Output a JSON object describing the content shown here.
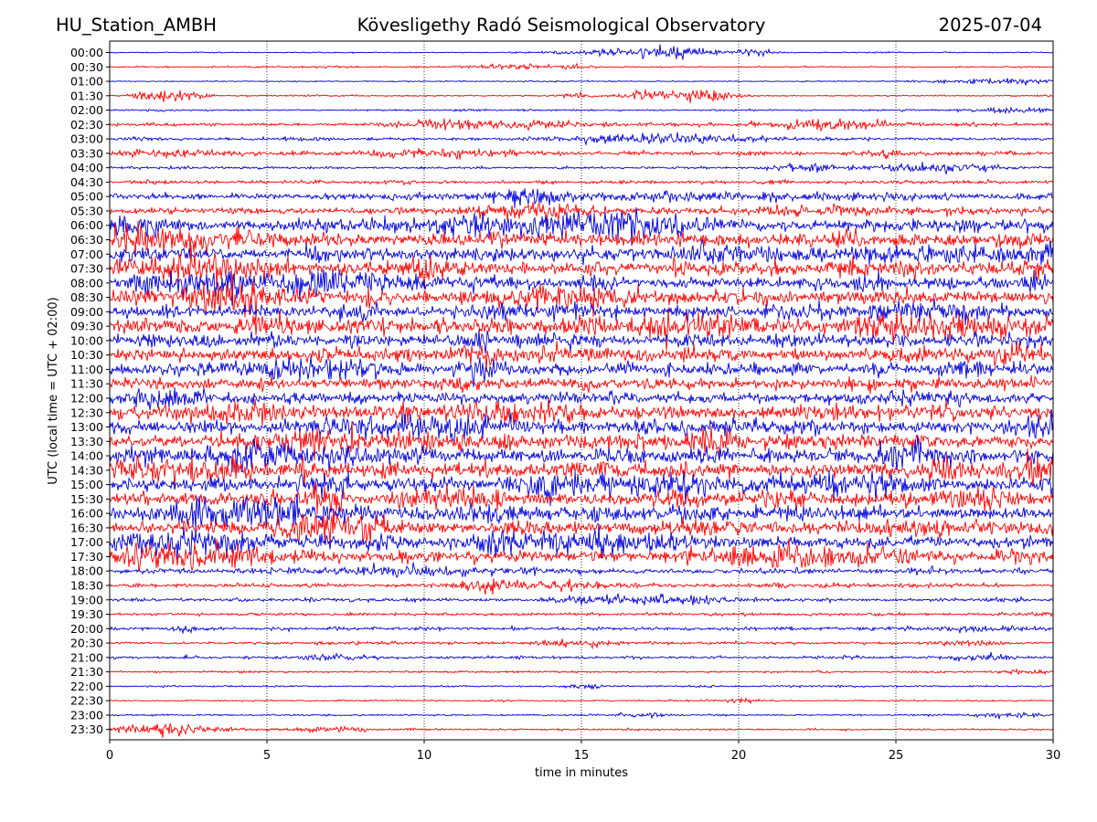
{
  "header": {
    "station": "HU_Station_AMBH",
    "observatory": "Kövesligethy Radó Seismological Observatory",
    "date": "2025-07-04"
  },
  "chart_data": {
    "type": "line",
    "title": "Kövesligethy Radó Seismological Observatory",
    "xlabel": "time in minutes",
    "ylabel": "UTC (local time = UTC + 02:00)",
    "xlim": [
      0,
      30
    ],
    "xticks": [
      0,
      5,
      10,
      15,
      20,
      25,
      30
    ],
    "grid": "vertical dotted",
    "colors": {
      "even_rows": "#0000dd",
      "odd_rows": "#ff0000"
    },
    "series": [
      {
        "name": "00:00",
        "noise": 0.1,
        "bursts": [
          [
            16.5,
            1.6,
            0.55
          ],
          [
            18.3,
            0.9,
            0.8
          ],
          [
            20.5,
            0.4,
            0.55
          ]
        ]
      },
      {
        "name": "00:30",
        "noise": 0.12,
        "bursts": [
          [
            12.8,
            0.8,
            0.45
          ],
          [
            14.8,
            0.4,
            0.35
          ]
        ]
      },
      {
        "name": "01:00",
        "noise": 0.1,
        "bursts": [
          [
            28.5,
            1.5,
            0.5
          ]
        ]
      },
      {
        "name": "01:30",
        "noise": 0.13,
        "bursts": [
          [
            1.5,
            0.5,
            1.25
          ],
          [
            2.5,
            0.4,
            0.55
          ],
          [
            14.8,
            0.3,
            0.55
          ],
          [
            17.2,
            0.6,
            0.85
          ],
          [
            19.0,
            0.6,
            1.5
          ]
        ]
      },
      {
        "name": "02:00",
        "noise": 0.14,
        "bursts": [
          [
            29.0,
            1.0,
            0.4
          ]
        ]
      },
      {
        "name": "02:30",
        "noise": 0.3,
        "bursts": [
          [
            11.5,
            1.5,
            0.6
          ],
          [
            14.0,
            0.8,
            0.45
          ],
          [
            22.8,
            1.0,
            0.8
          ]
        ]
      },
      {
        "name": "03:00",
        "noise": 0.25,
        "bursts": [
          [
            18.3,
            1.8,
            0.65
          ],
          [
            15.5,
            0.8,
            0.4
          ]
        ]
      },
      {
        "name": "03:30",
        "noise": 0.32,
        "bursts": [
          [
            2.0,
            1.0,
            0.55
          ],
          [
            11.0,
            1.5,
            0.55
          ],
          [
            24.8,
            0.5,
            0.5
          ]
        ]
      },
      {
        "name": "04:00",
        "noise": 0.22,
        "bursts": [
          [
            22.0,
            0.6,
            0.55
          ],
          [
            26.2,
            1.3,
            0.75
          ]
        ]
      },
      {
        "name": "04:30",
        "noise": 0.28,
        "bursts": []
      },
      {
        "name": "05:00",
        "noise": 0.55,
        "bursts": [
          [
            13.5,
            1.0,
            0.9
          ],
          [
            18.0,
            3.0,
            0.5
          ]
        ]
      },
      {
        "name": "05:30",
        "noise": 0.6,
        "bursts": [
          [
            13.5,
            1.2,
            1.3
          ],
          [
            23.0,
            1.5,
            0.6
          ]
        ]
      },
      {
        "name": "06:00",
        "noise": 0.95,
        "bursts": [
          [
            13.3,
            2.5,
            1.6
          ],
          [
            16.5,
            1.5,
            1.6
          ],
          [
            0.8,
            1.0,
            1.2
          ]
        ]
      },
      {
        "name": "06:30",
        "noise": 1.25,
        "bursts": [
          [
            0.6,
            1.0,
            1.7
          ],
          [
            3.0,
            1.5,
            1.2
          ]
        ]
      },
      {
        "name": "07:00",
        "noise": 1.15,
        "bursts": [
          [
            29.8,
            0.5,
            1.2
          ],
          [
            19.5,
            1.0,
            1.1
          ]
        ]
      },
      {
        "name": "07:30",
        "noise": 1.25,
        "bursts": [
          [
            3.0,
            1.5,
            1.7
          ],
          [
            10.0,
            0.6,
            1.3
          ]
        ]
      },
      {
        "name": "08:00",
        "noise": 1.15,
        "bursts": [
          [
            7.0,
            1.8,
            1.5
          ],
          [
            3.0,
            1.2,
            1.4
          ]
        ]
      },
      {
        "name": "08:30",
        "noise": 1.15,
        "bursts": [
          [
            4.2,
            1.3,
            1.9
          ],
          [
            15.0,
            1.5,
            1.3
          ]
        ]
      },
      {
        "name": "09:00",
        "noise": 1.05,
        "bursts": [
          [
            25.5,
            1.5,
            1.4
          ]
        ]
      },
      {
        "name": "09:30",
        "noise": 1.35,
        "bursts": [
          [
            27.0,
            2.5,
            1.6
          ],
          [
            18.5,
            1.5,
            1.2
          ]
        ]
      },
      {
        "name": "10:00",
        "noise": 1.05,
        "bursts": [
          [
            11.6,
            0.3,
            2.0
          ]
        ]
      },
      {
        "name": "10:30",
        "noise": 1.15,
        "bursts": [
          [
            11.6,
            0.5,
            1.8
          ],
          [
            28.8,
            0.8,
            1.3
          ]
        ]
      },
      {
        "name": "11:00",
        "noise": 1.05,
        "bursts": [
          [
            11.7,
            0.5,
            1.8
          ],
          [
            6.0,
            1.5,
            1.2
          ]
        ]
      },
      {
        "name": "11:30",
        "noise": 1.05,
        "bursts": []
      },
      {
        "name": "12:00",
        "noise": 1.05,
        "bursts": [
          [
            2.0,
            1.0,
            1.3
          ]
        ]
      },
      {
        "name": "12:30",
        "noise": 1.25,
        "bursts": [
          [
            4.2,
            0.8,
            1.7
          ],
          [
            13.0,
            1.5,
            1.2
          ]
        ]
      },
      {
        "name": "13:00",
        "noise": 1.15,
        "bursts": [
          [
            10.0,
            2.0,
            1.6
          ],
          [
            29.5,
            0.6,
            1.3
          ]
        ]
      },
      {
        "name": "13:30",
        "noise": 1.25,
        "bursts": [
          [
            19.2,
            0.6,
            1.6
          ],
          [
            7.0,
            1.5,
            1.4
          ]
        ]
      },
      {
        "name": "14:00",
        "noise": 1.25,
        "bursts": [
          [
            6.0,
            2.0,
            1.7
          ],
          [
            25.5,
            1.0,
            1.5
          ]
        ]
      },
      {
        "name": "14:30",
        "noise": 1.35,
        "bursts": [
          [
            1.5,
            1.5,
            1.5
          ],
          [
            29.5,
            0.6,
            1.6
          ]
        ]
      },
      {
        "name": "15:00",
        "noise": 1.25,
        "bursts": [
          [
            16.0,
            2.0,
            1.5
          ],
          [
            23.0,
            1.5,
            1.2
          ]
        ]
      },
      {
        "name": "15:30",
        "noise": 1.25,
        "bursts": [
          [
            6.7,
            0.4,
            1.9
          ],
          [
            11.0,
            1.0,
            1.4
          ],
          [
            27.8,
            0.8,
            1.3
          ]
        ]
      },
      {
        "name": "16:00",
        "noise": 1.25,
        "bursts": [
          [
            5.0,
            2.0,
            1.7
          ]
        ]
      },
      {
        "name": "16:30",
        "noise": 1.25,
        "bursts": [
          [
            7.5,
            1.0,
            1.6
          ],
          [
            5.8,
            0.4,
            1.8
          ]
        ]
      },
      {
        "name": "17:00",
        "noise": 1.15,
        "bursts": [
          [
            2.0,
            2.0,
            1.4
          ],
          [
            15.0,
            2.0,
            1.3
          ]
        ]
      },
      {
        "name": "17:30",
        "noise": 1.05,
        "bursts": [
          [
            2.5,
            2.0,
            1.7
          ],
          [
            22.0,
            2.0,
            1.6
          ]
        ]
      },
      {
        "name": "18:00",
        "noise": 0.42,
        "bursts": [
          [
            10.0,
            3.0,
            0.5
          ]
        ]
      },
      {
        "name": "18:30",
        "noise": 0.34,
        "bursts": [
          [
            12.0,
            0.8,
            0.85
          ],
          [
            14.5,
            1.0,
            0.45
          ]
        ]
      },
      {
        "name": "19:00",
        "noise": 0.3,
        "bursts": [
          [
            15.7,
            1.0,
            0.7
          ],
          [
            18.3,
            0.8,
            0.6
          ]
        ]
      },
      {
        "name": "19:30",
        "noise": 0.24,
        "bursts": []
      },
      {
        "name": "20:00",
        "noise": 0.28,
        "bursts": [
          [
            2.5,
            0.3,
            0.55
          ],
          [
            27.5,
            0.8,
            0.5
          ]
        ]
      },
      {
        "name": "20:30",
        "noise": 0.24,
        "bursts": [
          [
            14.8,
            0.8,
            0.55
          ],
          [
            27.5,
            0.5,
            0.4
          ]
        ]
      },
      {
        "name": "21:00",
        "noise": 0.24,
        "bursts": [
          [
            7.0,
            0.8,
            0.5
          ],
          [
            27.8,
            0.6,
            0.55
          ]
        ]
      },
      {
        "name": "21:30",
        "noise": 0.16,
        "bursts": [
          [
            29.0,
            0.6,
            0.35
          ]
        ]
      },
      {
        "name": "22:00",
        "noise": 0.14,
        "bursts": [
          [
            15.2,
            0.4,
            0.45
          ]
        ]
      },
      {
        "name": "22:30",
        "noise": 0.12,
        "bursts": [
          [
            20.0,
            0.5,
            0.3
          ]
        ]
      },
      {
        "name": "23:00",
        "noise": 0.14,
        "bursts": [
          [
            17.0,
            0.6,
            0.4
          ],
          [
            28.5,
            0.7,
            0.4
          ]
        ]
      },
      {
        "name": "23:30",
        "noise": 0.16,
        "bursts": [
          [
            1.7,
            1.2,
            1.05
          ],
          [
            7.0,
            1.0,
            0.4
          ]
        ]
      }
    ]
  }
}
